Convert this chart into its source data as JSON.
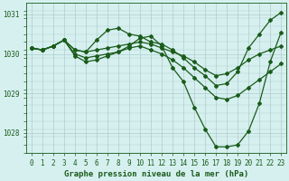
{
  "title": "Graphe pression niveau de la mer (hPa)",
  "bg_color": "#d6f0f0",
  "grid_color": "#b0cccc",
  "line_color": "#1a5c1a",
  "series": [
    {
      "x": [
        0,
        1,
        2,
        3,
        4,
        5,
        6,
        7,
        8,
        9,
        10,
        11,
        12,
        13,
        14,
        15,
        16,
        17,
        18,
        19,
        20,
        21,
        22,
        23
      ],
      "y": [
        1030.15,
        1030.1,
        1030.2,
        1030.35,
        1030.1,
        1030.05,
        1030.35,
        1030.6,
        1030.65,
        1030.5,
        1030.45,
        1030.3,
        1030.25,
        1030.1,
        1029.9,
        1029.65,
        1029.45,
        1029.2,
        1029.25,
        1029.55,
        1030.15,
        1030.5,
        1030.85,
        1031.05
      ]
    },
    {
      "x": [
        0,
        1,
        2,
        3,
        4,
        5,
        6,
        7,
        8,
        9,
        10,
        11,
        12,
        13,
        14,
        15,
        16,
        17,
        18,
        19,
        20,
        21,
        22,
        23
      ],
      "y": [
        1030.15,
        1030.1,
        1030.2,
        1030.35,
        1030.1,
        1030.05,
        1030.1,
        1030.15,
        1030.2,
        1030.25,
        1030.3,
        1030.25,
        1030.15,
        1030.05,
        1029.95,
        1029.8,
        1029.6,
        1029.45,
        1029.5,
        1029.65,
        1029.85,
        1030.0,
        1030.1,
        1030.2
      ]
    },
    {
      "x": [
        0,
        1,
        2,
        3,
        4,
        5,
        6,
        7,
        8,
        9,
        10,
        11,
        12,
        13,
        14,
        15,
        16,
        17,
        18,
        19,
        20,
        21,
        22,
        23
      ],
      "y": [
        1030.15,
        1030.1,
        1030.2,
        1030.35,
        1029.95,
        1029.8,
        1029.85,
        1029.95,
        1030.05,
        1030.2,
        1030.4,
        1030.45,
        1030.2,
        1029.65,
        1029.3,
        1028.65,
        1028.1,
        1027.65,
        1027.65,
        1027.7,
        1028.05,
        1028.75,
        1029.8,
        1030.55
      ]
    },
    {
      "x": [
        0,
        1,
        2,
        3,
        4,
        5,
        6,
        7,
        8,
        9,
        10,
        11,
        12,
        13,
        14,
        15,
        16,
        17,
        18,
        19,
        20,
        21,
        22,
        23
      ],
      "y": [
        1030.15,
        1030.1,
        1030.2,
        1030.35,
        1030.0,
        1029.9,
        1029.95,
        1030.0,
        1030.05,
        1030.15,
        1030.2,
        1030.1,
        1030.0,
        1029.85,
        1029.65,
        1029.4,
        1029.15,
        1028.9,
        1028.85,
        1028.95,
        1029.15,
        1029.35,
        1029.55,
        1029.75
      ]
    }
  ],
  "xlim_min": -0.5,
  "xlim_max": 23.5,
  "ylim_min": 1027.5,
  "ylim_max": 1031.3,
  "yticks": [
    1028,
    1029,
    1030,
    1031
  ],
  "xticks": [
    0,
    1,
    2,
    3,
    4,
    5,
    6,
    7,
    8,
    9,
    10,
    11,
    12,
    13,
    14,
    15,
    16,
    17,
    18,
    19,
    20,
    21,
    22,
    23
  ],
  "tick_fontsize": 5.5,
  "title_fontsize": 6.5,
  "marker": "D",
  "markersize": 2.0,
  "linewidth": 0.9
}
